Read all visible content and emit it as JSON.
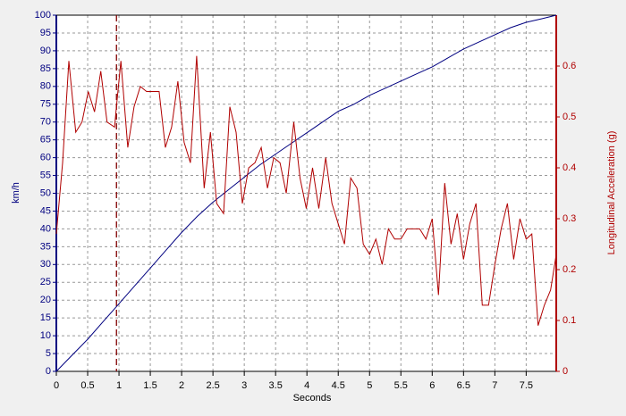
{
  "chart_data": {
    "type": "line",
    "x_label": "Seconds",
    "y_label": "km/h",
    "y2_label": "Longitudinal Acceleration (g)",
    "xlim": [
      0,
      7.98
    ],
    "xticks": [
      0,
      0.5,
      1,
      1.5,
      2,
      2.5,
      3,
      3.5,
      4,
      4.5,
      5,
      5.5,
      6,
      6.5,
      7,
      7.5
    ],
    "ylim": [
      0,
      100
    ],
    "yticks": [
      0,
      5,
      10,
      15,
      20,
      25,
      30,
      35,
      40,
      45,
      50,
      55,
      60,
      65,
      70,
      75,
      80,
      85,
      90,
      95,
      100
    ],
    "y2lim": [
      0,
      0.7
    ],
    "y2ticks": [
      0,
      0.1,
      0.2,
      0.3,
      0.4,
      0.5,
      0.6
    ],
    "grid": true,
    "marker_x": 0.96,
    "series": [
      {
        "color": "#000080",
        "axis": "y",
        "x": [
          0,
          0.25,
          0.5,
          0.75,
          1,
          1.25,
          1.5,
          1.75,
          2,
          2.25,
          2.5,
          2.75,
          3,
          3.25,
          3.5,
          3.75,
          4,
          4.25,
          4.5,
          4.75,
          5,
          5.25,
          5.5,
          5.75,
          6,
          6.25,
          6.5,
          6.75,
          7,
          7.25,
          7.5,
          7.75,
          7.98
        ],
        "values": [
          0,
          4.5,
          9,
          14,
          19,
          24,
          29,
          34,
          39,
          43.5,
          47.5,
          51,
          54.5,
          58,
          61,
          64,
          67,
          70,
          73,
          75,
          77.5,
          79.5,
          81.5,
          83.5,
          85.5,
          88,
          90.5,
          92.5,
          94.5,
          96.5,
          98,
          99,
          100
        ]
      },
      {
        "color": "#b00000",
        "axis": "y2",
        "x": [
          0,
          0.1,
          0.2,
          0.31,
          0.41,
          0.51,
          0.61,
          0.71,
          0.81,
          0.93,
          0.96,
          1.03,
          1.14,
          1.24,
          1.34,
          1.44,
          1.54,
          1.64,
          1.74,
          1.84,
          1.94,
          2.04,
          2.14,
          2.24,
          2.36,
          2.46,
          2.56,
          2.67,
          2.77,
          2.87,
          2.97,
          3.07,
          3.17,
          3.27,
          3.37,
          3.47,
          3.57,
          3.67,
          3.79,
          3.89,
          3.99,
          4.09,
          4.19,
          4.3,
          4.4,
          4.5,
          4.6,
          4.7,
          4.8,
          4.9,
          5.0,
          5.1,
          5.2,
          5.3,
          5.4,
          5.5,
          5.6,
          5.7,
          5.8,
          5.9,
          6.0,
          6.1,
          6.2,
          6.3,
          6.4,
          6.5,
          6.6,
          6.7,
          6.8,
          6.9,
          7.0,
          7.1,
          7.2,
          7.3,
          7.4,
          7.5,
          7.59,
          7.69,
          7.79,
          7.89,
          7.98
        ],
        "values": [
          0.27,
          0.41,
          0.61,
          0.47,
          0.49,
          0.55,
          0.51,
          0.59,
          0.49,
          0.48,
          0.52,
          0.61,
          0.44,
          0.52,
          0.56,
          0.55,
          0.55,
          0.55,
          0.44,
          0.48,
          0.57,
          0.45,
          0.41,
          0.62,
          0.36,
          0.47,
          0.33,
          0.31,
          0.52,
          0.47,
          0.33,
          0.4,
          0.41,
          0.44,
          0.36,
          0.42,
          0.41,
          0.35,
          0.49,
          0.38,
          0.32,
          0.4,
          0.32,
          0.42,
          0.33,
          0.29,
          0.25,
          0.38,
          0.36,
          0.25,
          0.23,
          0.26,
          0.21,
          0.28,
          0.26,
          0.26,
          0.28,
          0.28,
          0.28,
          0.26,
          0.3,
          0.15,
          0.37,
          0.25,
          0.31,
          0.22,
          0.29,
          0.33,
          0.13,
          0.13,
          0.21,
          0.28,
          0.33,
          0.22,
          0.3,
          0.26,
          0.27,
          0.09,
          0.13,
          0.16,
          0.23
        ]
      }
    ]
  }
}
